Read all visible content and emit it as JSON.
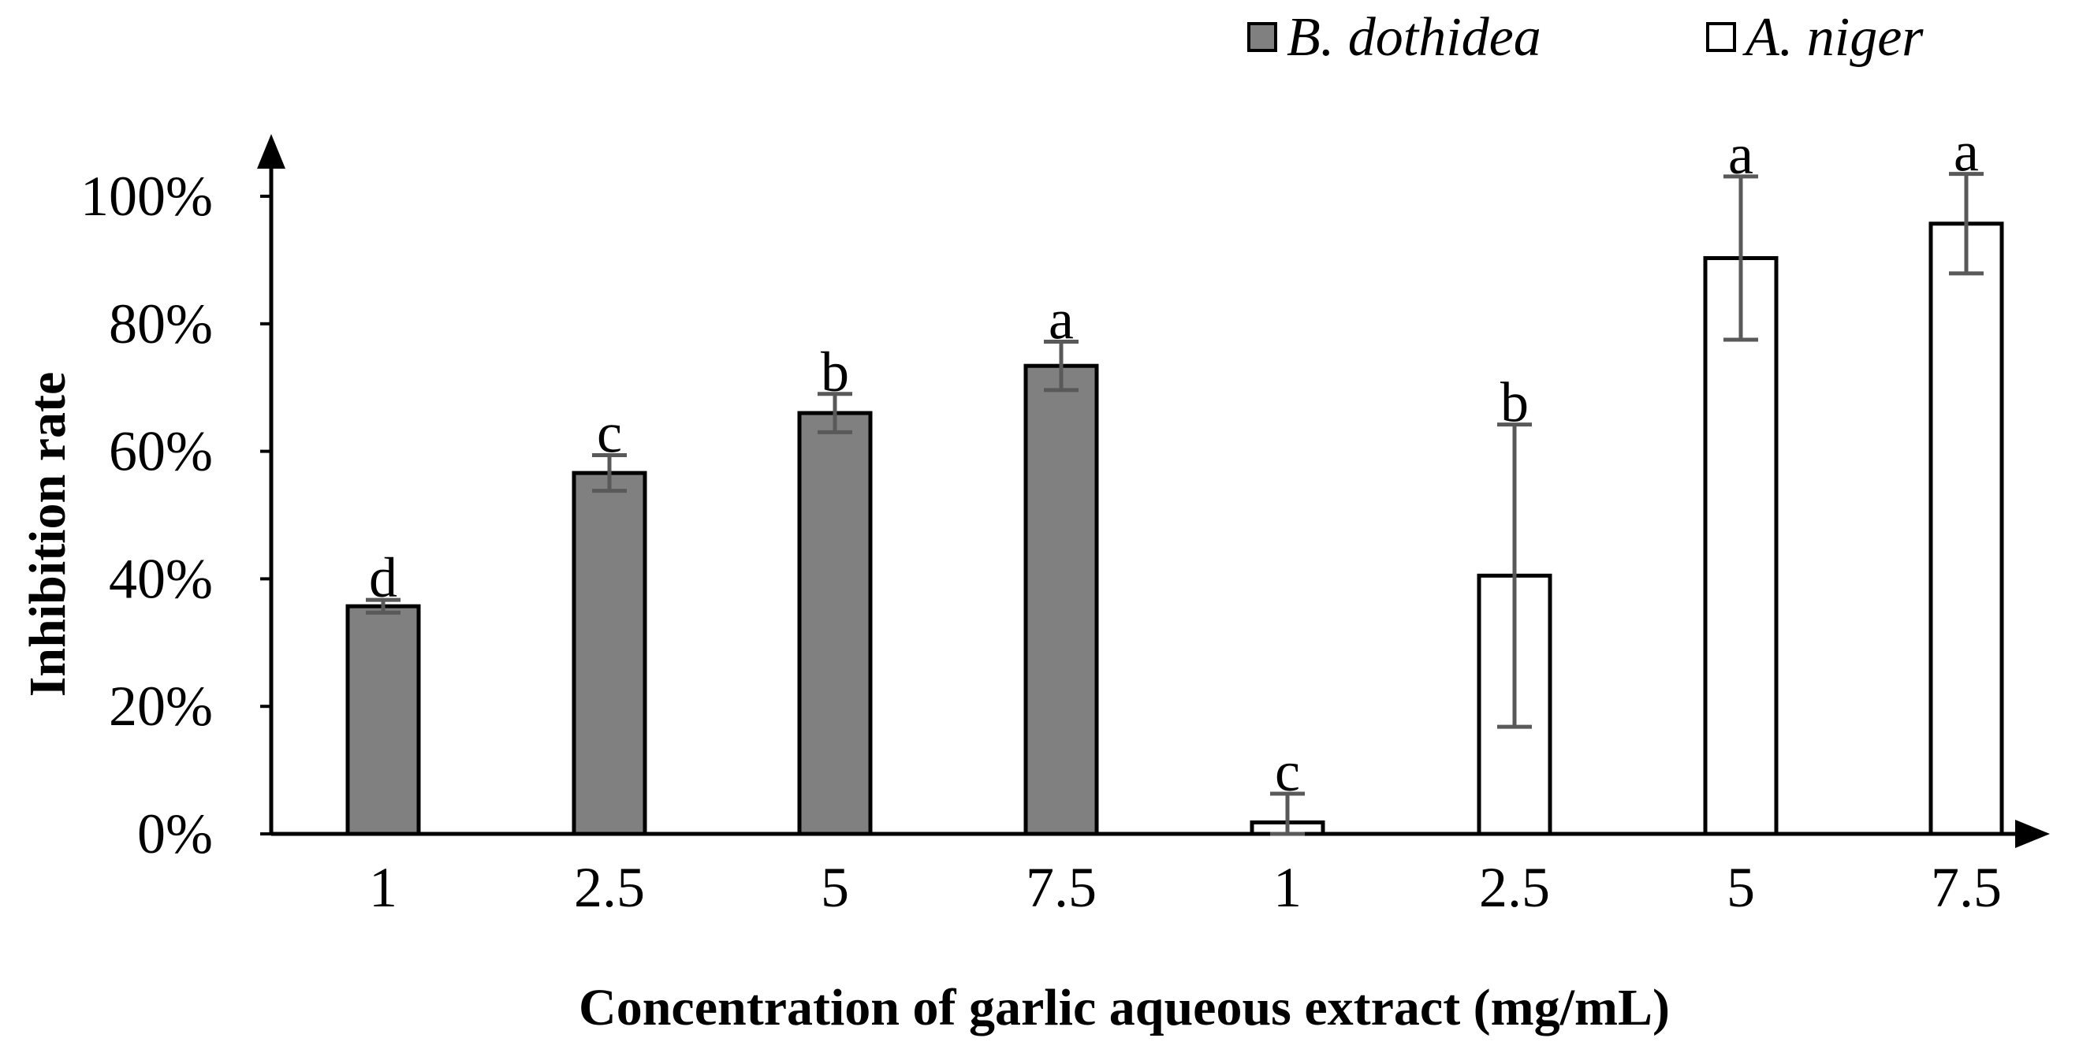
{
  "chart_data": {
    "type": "bar",
    "xlabel": "Concentration of garlic aqueous extract (mg/mL)",
    "ylabel": "Inhibition rate",
    "ylim": [
      0,
      100
    ],
    "yticks": [
      "0%",
      "20%",
      "40%",
      "60%",
      "80%",
      "100%"
    ],
    "grid": false,
    "legend_position": "top-right",
    "series": [
      {
        "name": "B. dothidea",
        "color": "#808080",
        "categories": [
          "1",
          "2.5",
          "5",
          "7.5"
        ],
        "values": [
          35.7,
          56.6,
          66.0,
          73.4
        ],
        "errors": [
          1.0,
          2.8,
          3.0,
          3.8
        ],
        "labels": [
          "d",
          "c",
          "b",
          "a"
        ]
      },
      {
        "name": "A. niger",
        "color": "#ffffff",
        "categories": [
          "1",
          "2.5",
          "5",
          "7.5"
        ],
        "values": [
          1.8,
          40.5,
          90.3,
          95.7
        ],
        "errors": [
          4.5,
          23.7,
          12.8,
          7.8
        ],
        "labels": [
          "c",
          "b",
          "a",
          "a"
        ]
      }
    ]
  }
}
